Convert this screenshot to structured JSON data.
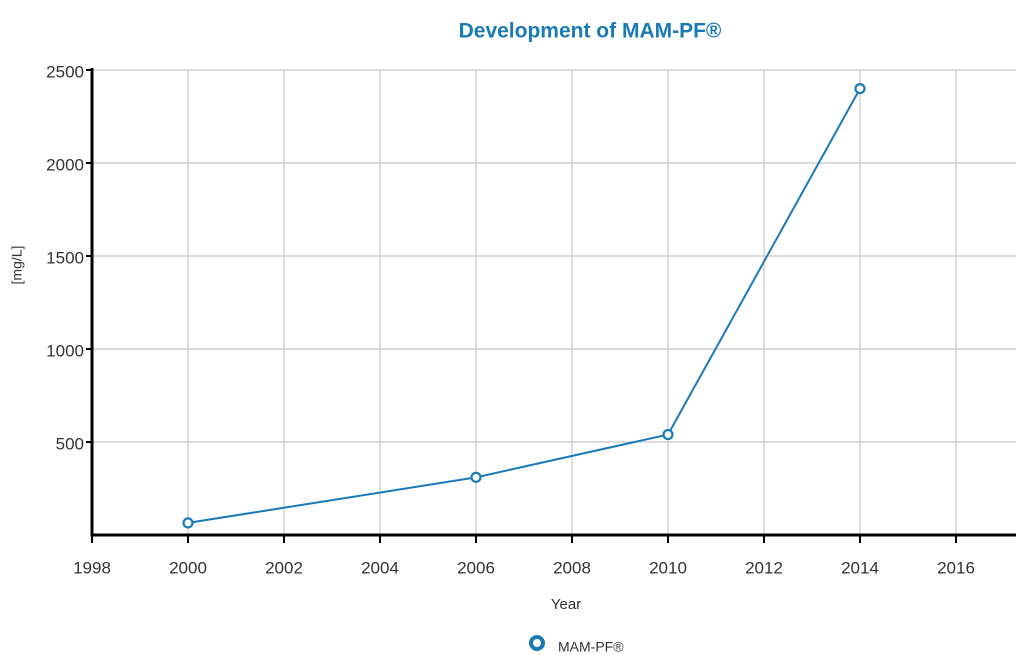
{
  "chart_data": {
    "type": "line",
    "title": "Development of MAM-PF®",
    "x_label": "Year",
    "y_label": "[mg/L]",
    "x": [
      2000,
      2006,
      2010,
      2014
    ],
    "series": [
      {
        "name": "MAM-PF®",
        "color": "#1a7ab8",
        "values": [
          65,
          310,
          540,
          2400
        ]
      }
    ],
    "xlim": [
      1998,
      2017.25
    ],
    "xticks": [
      1998,
      2000,
      2002,
      2004,
      2006,
      2008,
      2010,
      2012,
      2014,
      2016
    ],
    "ylim": [
      0,
      2500
    ],
    "yticks": [
      500,
      1000,
      1500,
      2000,
      2500
    ],
    "grid": true
  }
}
